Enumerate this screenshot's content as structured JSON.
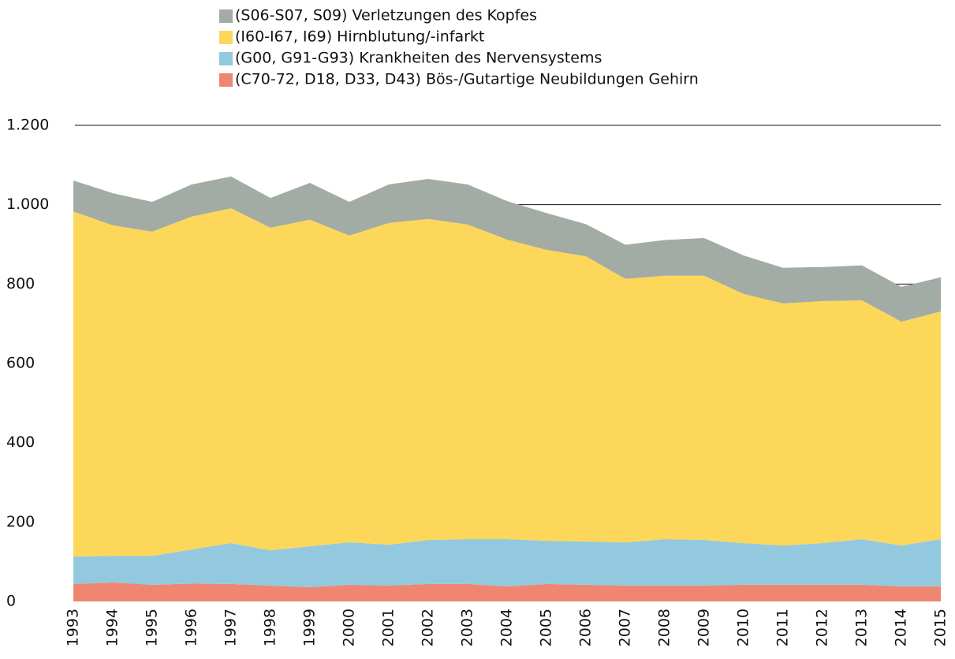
{
  "chart_data": {
    "type": "stacked_area",
    "x": [
      1993,
      1994,
      1995,
      1996,
      1997,
      1998,
      1999,
      2000,
      2001,
      2002,
      2003,
      2004,
      2005,
      2006,
      2007,
      2008,
      2009,
      2010,
      2011,
      2012,
      2013,
      2014,
      2015
    ],
    "series": [
      {
        "name": "(C70-72, D18, D33, D43) Bös-/Gutartige Neubildungen Gehirn",
        "color": "#ef8672",
        "values": [
          44,
          48,
          42,
          45,
          44,
          40,
          36,
          42,
          40,
          44,
          44,
          38,
          44,
          42,
          40,
          40,
          40,
          42,
          42,
          42,
          42,
          38,
          38
        ]
      },
      {
        "name": "(G00, G91-G93) Krankheiten des Nervensystems",
        "color": "#93c9df",
        "values": [
          69,
          67,
          73,
          86,
          103,
          89,
          103,
          107,
          103,
          111,
          113,
          119,
          109,
          109,
          109,
          117,
          115,
          105,
          99,
          105,
          115,
          103,
          119
        ]
      },
      {
        "name": "(I60-I67, I69) Hirnblutung/-infarkt",
        "color": "#fdd75a",
        "values": [
          870,
          833,
          817,
          839,
          844,
          813,
          823,
          773,
          811,
          809,
          793,
          755,
          733,
          719,
          664,
          664,
          666,
          628,
          610,
          610,
          602,
          564,
          574
        ]
      },
      {
        "name": "(S06-S07, S09) Verletzungen des Kopfes",
        "color": "#a3aba5",
        "values": [
          78,
          81,
          75,
          81,
          80,
          75,
          93,
          85,
          97,
          101,
          101,
          97,
          93,
          81,
          86,
          90,
          95,
          97,
          90,
          86,
          88,
          88,
          86
        ]
      }
    ],
    "xlim": [
      1993,
      2015
    ],
    "ylim": [
      0,
      1200
    ],
    "yticks": [
      0,
      200,
      400,
      600,
      800,
      {
        "value": 1000,
        "label": "1.000"
      },
      {
        "value": 1200,
        "label": "1.200"
      }
    ],
    "grid": true
  }
}
